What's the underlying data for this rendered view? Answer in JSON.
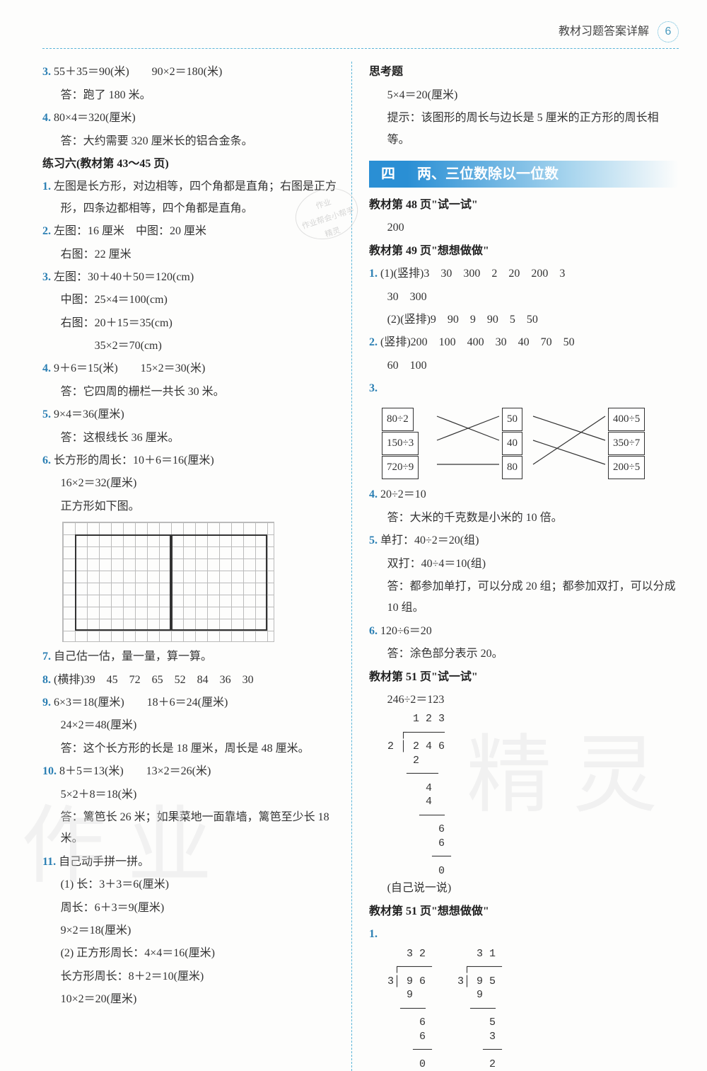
{
  "header": {
    "title": "教材习题答案详解",
    "page_num": "6"
  },
  "colors": {
    "accent": "#2a8fd4",
    "dash": "#5bb5d8",
    "num": "#2b7fb3",
    "watermark": "#ddd"
  },
  "left": {
    "l3a": "3.",
    "l3b": "55＋35＝90(米)　　90×2＝180(米)",
    "l3ans": "答：跑了 180 米。",
    "l4a": "4.",
    "l4b": "80×4＝320(厘米)",
    "l4ans": "答：大约需要 320 厘米长的铝合金条。",
    "sec6": "练习六(教材第 43～45 页)",
    "p1n": "1.",
    "p1": "左图是长方形，对边相等，四个角都是直角；右图是正方形，四条边都相等，四个角都是直角。",
    "p2n": "2.",
    "p2a": "左图：16 厘米　中图：20 厘米",
    "p2b": "右图：22 厘米",
    "p3n": "3.",
    "p3a": "左图：30＋40＋50＝120(cm)",
    "p3b": "中图：25×4＝100(cm)",
    "p3c": "右图：20＋15＝35(cm)",
    "p3d": "　　　35×2＝70(cm)",
    "p4n": "4.",
    "p4a": "9＋6＝15(米)　　15×2＝30(米)",
    "p4ans": "答：它四周的栅栏一共长 30 米。",
    "p5n": "5.",
    "p5a": "9×4＝36(厘米)",
    "p5ans": "答：这根线长 36 厘米。",
    "p6n": "6.",
    "p6a": "长方形的周长：10＋6＝16(厘米)",
    "p6b": "16×2＝32(厘米)",
    "p6c": "正方形如下图。",
    "p7n": "7.",
    "p7": "自己估一估，量一量，算一算。",
    "p8n": "8.",
    "p8": "(横排)39　45　72　65　52　84　36　30",
    "p9n": "9.",
    "p9a": "6×3＝18(厘米)　　18＋6＝24(厘米)",
    "p9b": "24×2＝48(厘米)",
    "p9ans": "答：这个长方形的长是 18 厘米，周长是 48 厘米。",
    "p10n": "10.",
    "p10a": "8＋5＝13(米)　　13×2＝26(米)",
    "p10b": "5×2＋8＝18(米)",
    "p10ans": "答：篱笆长 26 米；如果菜地一面靠墙，篱笆至少长 18 米。",
    "p11n": "11.",
    "p11a": "自己动手拼一拼。",
    "p11b": "(1) 长：3＋3＝6(厘米)",
    "p11c": "周长：6＋3＝9(厘米)",
    "p11d": "9×2＝18(厘米)",
    "p11e": "(2) 正方形周长：4×4＝16(厘米)",
    "p11f": "长方形周长：8＋2＝10(厘米)",
    "p11g": "10×2＝20(厘米)"
  },
  "right": {
    "think_h": "思考题",
    "think_a": "5×4＝20(厘米)",
    "think_b": "提示：该图形的周长与边长是 5 厘米的正方形的周长相等。",
    "ch_num": "四",
    "ch_title": "两、三位数除以一位数",
    "s48h": "教材第 48 页\"试一试\"",
    "s48a": "200",
    "s49h": "教材第 49 页\"想想做做\"",
    "r1n": "1.",
    "r1a": "(1)(竖排)3　30　300　2　20　200　3",
    "r1b": "30　300",
    "r1c": "(2)(竖排)9　90　9　90　5　50",
    "r2n": "2.",
    "r2": "(竖排)200　100　400　30　40　70　50",
    "r2b": "60　100",
    "r3n": "3.",
    "match": {
      "left": [
        "80÷2",
        "150÷3",
        "720÷9"
      ],
      "mid": [
        "50",
        "40",
        "80"
      ],
      "right": [
        "400÷5",
        "350÷7",
        "200÷5"
      ],
      "edges_lm": [
        [
          0,
          1
        ],
        [
          1,
          0
        ],
        [
          2,
          2
        ]
      ],
      "edges_mr": [
        [
          0,
          1
        ],
        [
          1,
          2
        ],
        [
          2,
          0
        ]
      ]
    },
    "r4n": "4.",
    "r4a": "20÷2＝10",
    "r4ans": "答：大米的千克数是小米的 10 倍。",
    "r5n": "5.",
    "r5a": "单打：40÷2＝20(组)",
    "r5b": "双打：40÷4＝10(组)",
    "r5ans": "答：都参加单打，可以分成 20 组；都参加双打，可以分成 10 组。",
    "r6n": "6.",
    "r6a": "120÷6＝20",
    "r6ans": "答：涂色部分表示 20。",
    "s51h": "教材第 51 页\"试一试\"",
    "s51a": "246÷2＝123",
    "longdiv": "    1 2 3\n  ┌──────\n2 │ 2 4 6\n    2\n   ─────\n      4\n      4\n     ────\n        6\n        6\n       ───\n        0",
    "s51say": "(自己说一说)",
    "s51h2": "教材第 51 页\"想想做做\"",
    "d1n": "1.",
    "div1": "   3 2        3 1\n ┌─────     ┌─────\n3│ 9 6     3│ 9 5\n   9          9\n  ────       ────\n     6          5\n     6          3\n    ───        ───\n     0          2"
  },
  "watermarks": {
    "wm1": "作业",
    "wm2": "精灵"
  },
  "stamp": {
    "l1": "作业",
    "l2": "作业帮会小帮手",
    "l3": "精灵"
  }
}
